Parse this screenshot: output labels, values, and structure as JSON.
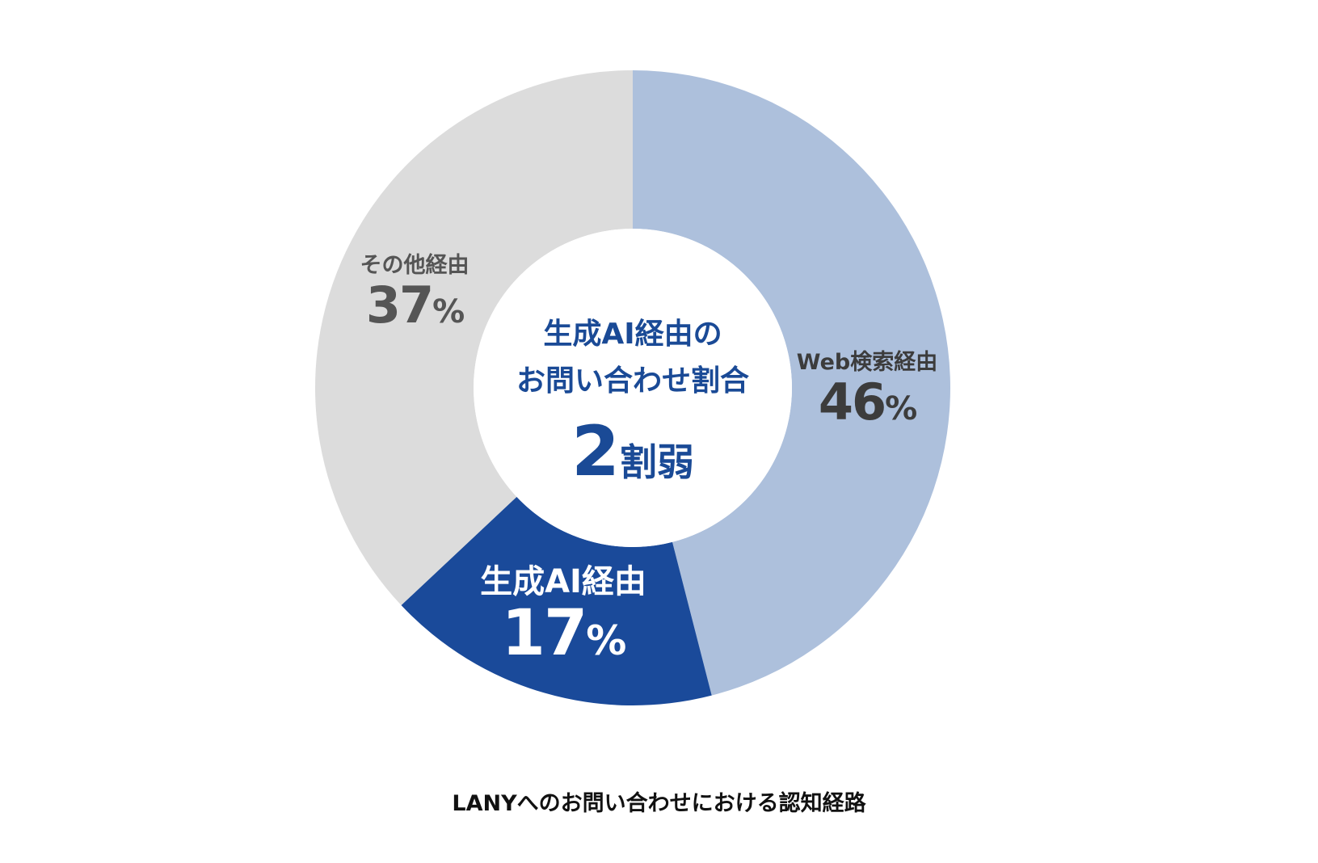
{
  "chart_data": {
    "type": "pie",
    "donut": true,
    "start": "top",
    "direction": "clockwise",
    "slices": [
      {
        "label": "Web検索経由",
        "value": 46,
        "display": "46",
        "color": "#adc0dc",
        "text_color": "#3c3c3c"
      },
      {
        "label": "生成AI経由",
        "value": 17,
        "display": "17",
        "color": "#1a4a9a",
        "text_color": "#ffffff"
      },
      {
        "label": "その他経由",
        "value": 37,
        "display": "37",
        "color": "#dcdcdc",
        "text_color": "#555555"
      }
    ],
    "unit": "%",
    "center": {
      "title_line1": "生成AI経由の",
      "title_line2": "お問い合わせ割合",
      "value_number": "2",
      "value_suffix": "割弱",
      "color": "#1a4a96"
    },
    "caption": "LANYへのお問い合わせにおける認知経路"
  }
}
